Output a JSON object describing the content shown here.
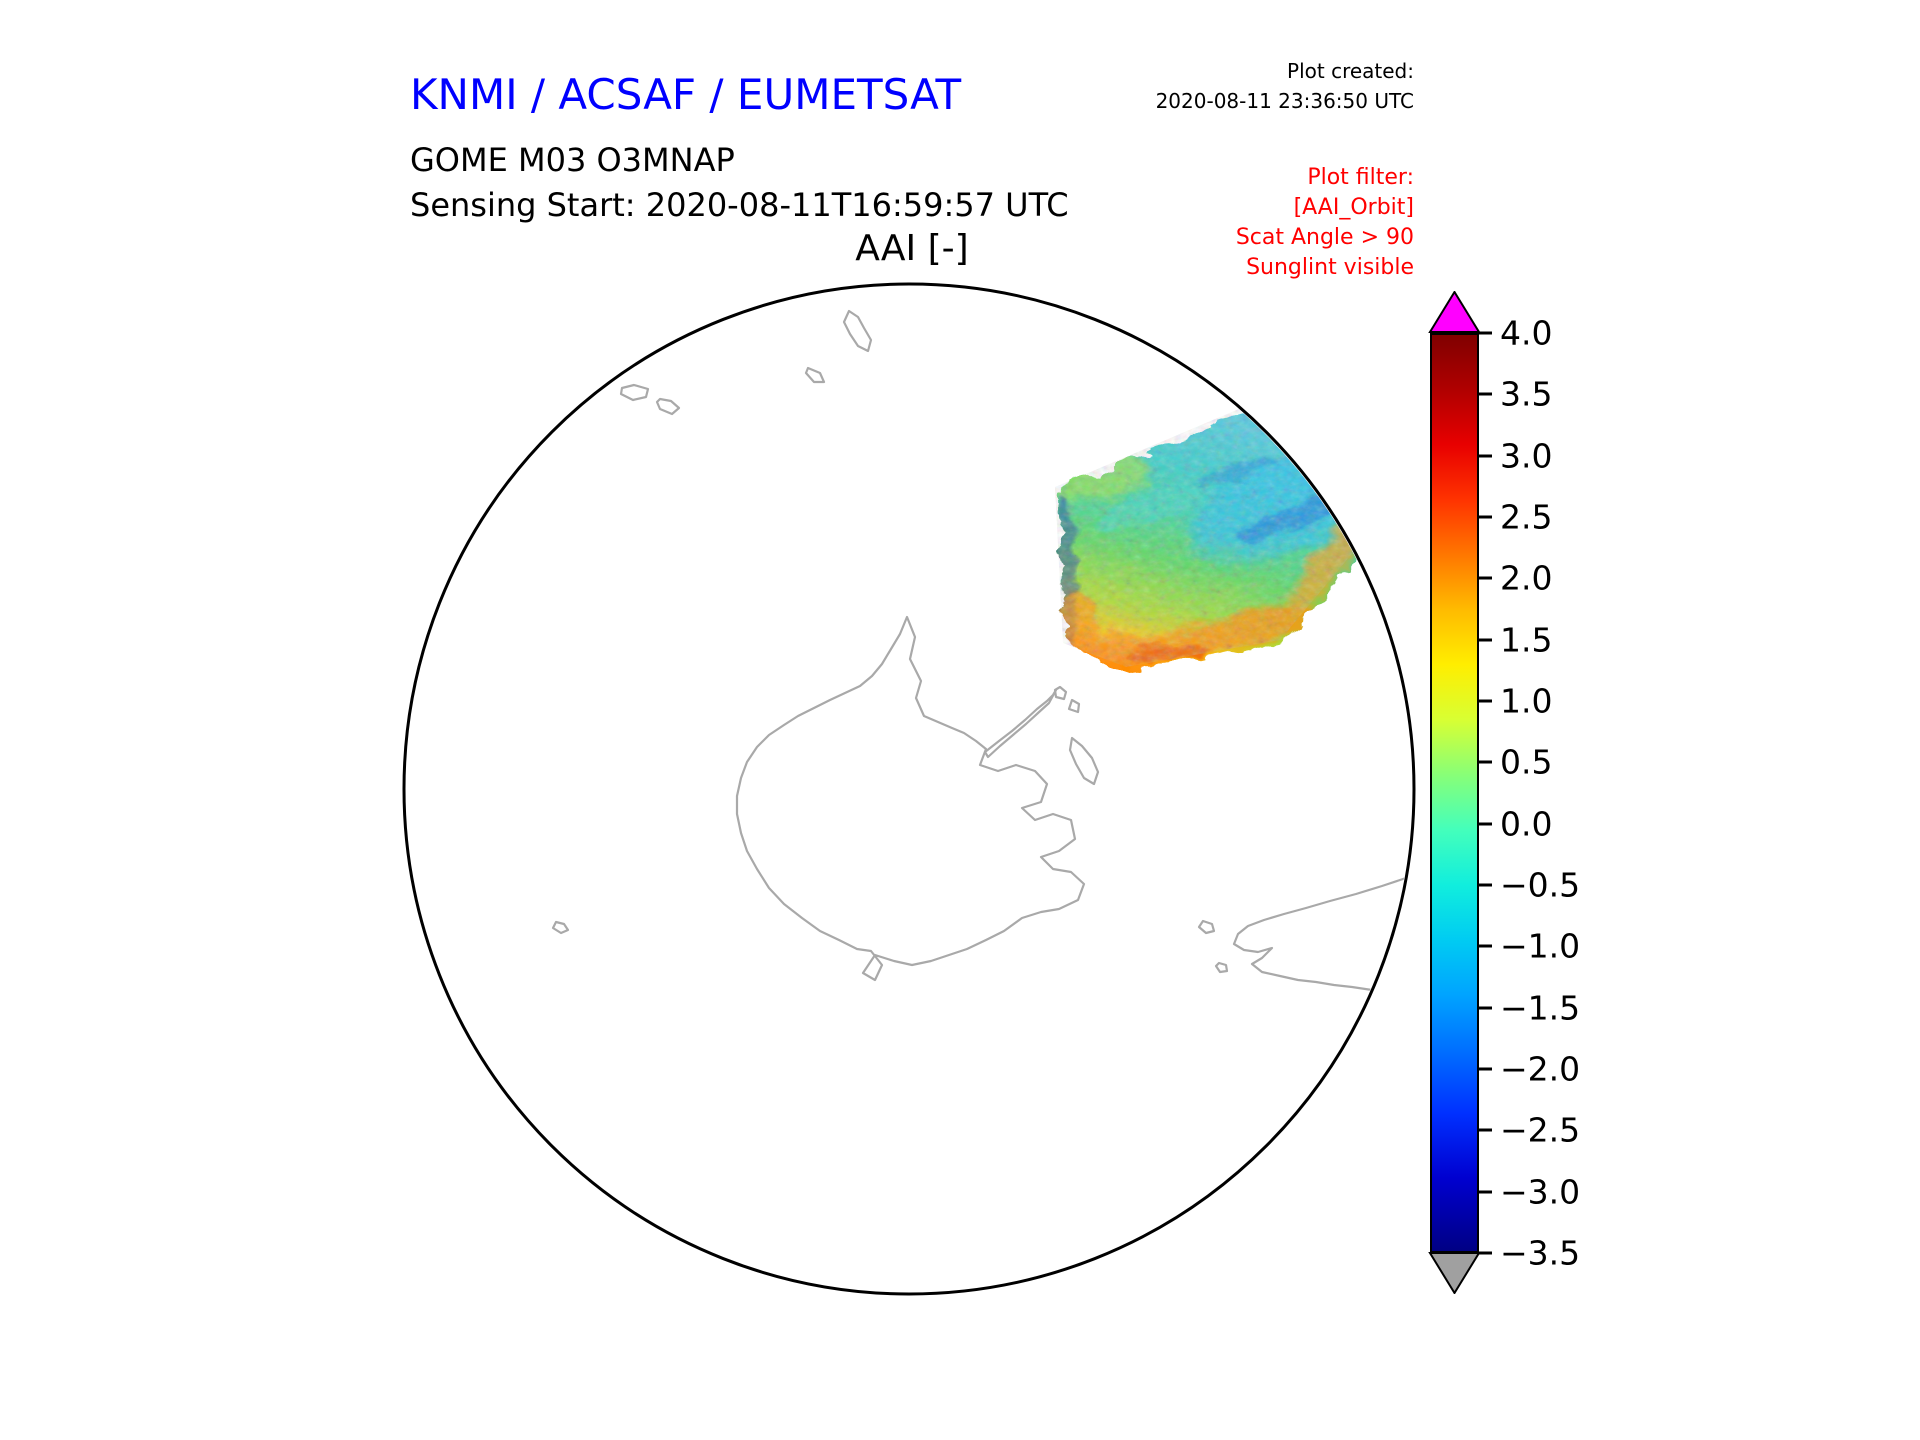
{
  "header": {
    "org_title": "KNMI / ACSAF / EUMETSAT",
    "plot_created": {
      "label": "Plot created:",
      "value": "2020-08-11 23:36:50 UTC"
    },
    "product": {
      "line1": "GOME M03 O3MNAP",
      "line2": "Sensing Start: 2020-08-11T16:59:57 UTC"
    },
    "plot_title": "AAI [-]",
    "filter": {
      "color": "#ff0000",
      "lines": [
        "Plot filter:",
        "[AAI_Orbit]",
        "Scat Angle > 90",
        "Sunglint visible"
      ]
    }
  },
  "chart_data": {
    "type": "heatmap",
    "title": "AAI [-]",
    "projection": "south polar stereographic (Antarctica centered)",
    "map": {
      "coastline_color": "#a9a9a9",
      "boundary_color": "#000000",
      "background": "#ffffff"
    },
    "colorbar": {
      "orientation": "vertical",
      "position": "right",
      "vmin": -3.5,
      "vmax": 4.0,
      "colormap": "jet-like rainbow (navy to dark red)",
      "over_color": "#ff00ff",
      "under_color": "#a0a0a0",
      "ticks": [
        4.0,
        3.5,
        3.0,
        2.5,
        2.0,
        1.5,
        1.0,
        0.5,
        0.0,
        -0.5,
        -1.0,
        -1.5,
        -2.0,
        -2.5,
        -3.0,
        -3.5
      ],
      "tick_labels": [
        "4.0",
        "3.5",
        "3.0",
        "2.5",
        "2.0",
        "1.5",
        "1.0",
        "0.5",
        "0.0",
        "−0.5",
        "−1.0",
        "−1.5",
        "−2.0",
        "−2.5",
        "−3.0",
        "−3.5"
      ]
    },
    "swath": {
      "description": "Single GOME-2 (Metop M03) orbit swath of Absorbing Aerosol Index, upper-right quadrant of the polar view, touching the map boundary",
      "approx_aai_values": {
        "dominant_green_field": 0.5,
        "yellow_orange_lower_edge": 1.5,
        "cyan_patches": -0.8,
        "dark_blue_speckles": -2.5
      }
    }
  }
}
